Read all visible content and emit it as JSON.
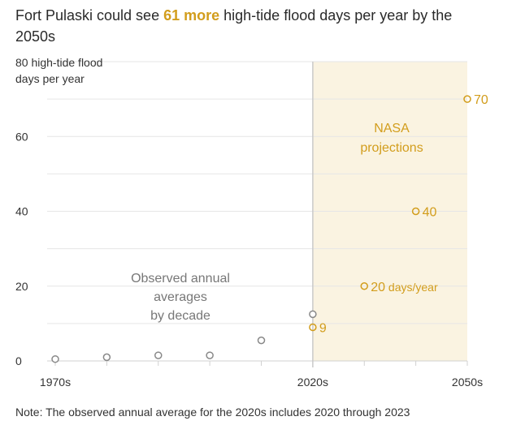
{
  "title": {
    "before": "Fort Pulaski could see ",
    "highlight": "61 more",
    "after": " high-tide flood days per year by the 2050s"
  },
  "note": "Note: The observed annual average for the 2020s includes 2020 through 2023",
  "colors": {
    "observed": "#888888",
    "projection": "#d29d1c",
    "projection_band": "#faf3e1",
    "divider": "#c9c9c9",
    "grid": "#e6e6e6"
  },
  "chart_data": {
    "type": "scatter",
    "ylim": [
      0,
      80
    ],
    "xlim": [
      1970,
      2050
    ],
    "y_top_label": [
      "80 high-tide flood",
      "days per year"
    ],
    "y_ticks": [
      {
        "value": 0,
        "label": "0"
      },
      {
        "value": 20,
        "label": "20"
      },
      {
        "value": 40,
        "label": "40"
      },
      {
        "value": 60,
        "label": "60"
      }
    ],
    "x_ticks": [
      {
        "value": 1970,
        "label": "1970s"
      },
      {
        "value": 2020,
        "label": "2020s"
      },
      {
        "value": 2050,
        "label": "2050s"
      }
    ],
    "observed_label": [
      "Observed annual",
      "averages",
      "by decade"
    ],
    "projection_label": [
      "NASA",
      "projections"
    ],
    "observed": [
      {
        "x": 1970,
        "y": 0.5
      },
      {
        "x": 1980,
        "y": 1
      },
      {
        "x": 1990,
        "y": 1.5
      },
      {
        "x": 2000,
        "y": 1.5
      },
      {
        "x": 2010,
        "y": 5.5
      },
      {
        "x": 2020,
        "y": 12.5
      }
    ],
    "projections": [
      {
        "x": 2020,
        "y": 9,
        "label": "9",
        "unit": ""
      },
      {
        "x": 2030,
        "y": 20,
        "label": "20",
        "unit": " days/year"
      },
      {
        "x": 2040,
        "y": 40,
        "label": "40",
        "unit": ""
      },
      {
        "x": 2050,
        "y": 70,
        "label": "70",
        "unit": ""
      }
    ]
  }
}
